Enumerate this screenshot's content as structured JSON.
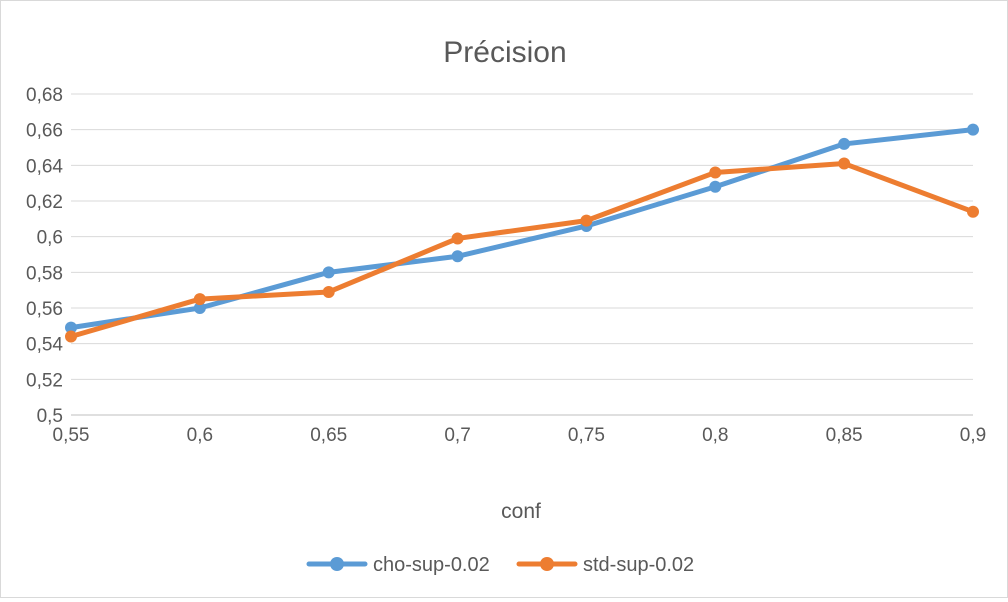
{
  "chart_data": {
    "type": "line",
    "title": "Précision",
    "xlabel": "conf",
    "ylabel": "",
    "x": [
      0.55,
      0.6,
      0.65,
      0.7,
      0.75,
      0.8,
      0.85,
      0.9
    ],
    "x_tick_labels": [
      "0,55",
      "0,6",
      "0,65",
      "0,7",
      "0,75",
      "0,8",
      "0,85",
      "0,9"
    ],
    "ylim": [
      0.5,
      0.68
    ],
    "y_ticks": [
      0.5,
      0.52,
      0.54,
      0.56,
      0.58,
      0.6,
      0.62,
      0.64,
      0.66,
      0.68
    ],
    "y_tick_labels": [
      "0,5",
      "0,52",
      "0,54",
      "0,56",
      "0,58",
      "0,6",
      "0,62",
      "0,64",
      "0,66",
      "0,68"
    ],
    "grid": true,
    "legend_position": "bottom",
    "series": [
      {
        "name": "cho-sup-0.02",
        "color": "#5b9bd5",
        "values": [
          0.549,
          0.56,
          0.58,
          0.589,
          0.606,
          0.628,
          0.652,
          0.66
        ]
      },
      {
        "name": "std-sup-0.02",
        "color": "#ed7d31",
        "values": [
          0.544,
          0.565,
          0.569,
          0.599,
          0.609,
          0.636,
          0.641,
          0.614
        ]
      }
    ]
  }
}
